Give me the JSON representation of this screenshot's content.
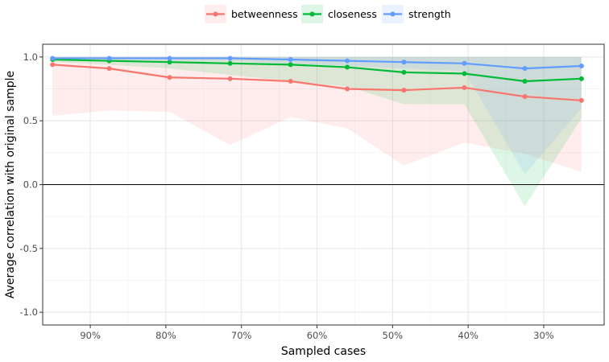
{
  "chart_data": {
    "type": "line",
    "title": "",
    "xlabel": "Sampled cases",
    "ylabel": "Average correlation with original sample",
    "xlim": [
      0.963,
      0.22
    ],
    "ylim": [
      -1.1,
      1.1
    ],
    "x_ticks": [
      {
        "value": 0.9,
        "label": "90%"
      },
      {
        "value": 0.8,
        "label": "80%"
      },
      {
        "value": 0.7,
        "label": "70%"
      },
      {
        "value": 0.6,
        "label": "60%"
      },
      {
        "value": 0.5,
        "label": "50%"
      },
      {
        "value": 0.4,
        "label": "40%"
      },
      {
        "value": 0.3,
        "label": "30%"
      }
    ],
    "y_ticks": [
      {
        "value": 1.0,
        "label": "1.0"
      },
      {
        "value": 0.5,
        "label": "0.5"
      },
      {
        "value": 0.0,
        "label": "0.0"
      },
      {
        "value": -0.5,
        "label": "-0.5"
      },
      {
        "value": -1.0,
        "label": "-1.0"
      }
    ],
    "grid": true,
    "reference_line": 0.0,
    "legend_position": "top",
    "x": [
      0.95,
      0.875,
      0.795,
      0.715,
      0.635,
      0.56,
      0.485,
      0.405,
      0.325,
      0.25
    ],
    "series": [
      {
        "name": "betweenness",
        "color": "#F8766D",
        "values": [
          0.94,
          0.91,
          0.84,
          0.83,
          0.81,
          0.75,
          0.74,
          0.76,
          0.69,
          0.66
        ],
        "lower": [
          0.54,
          0.58,
          0.57,
          0.31,
          0.53,
          0.44,
          0.15,
          0.33,
          0.24,
          0.1
        ],
        "upper": [
          1.0,
          1.0,
          1.0,
          1.0,
          1.0,
          1.0,
          1.0,
          1.0,
          1.0,
          1.0
        ]
      },
      {
        "name": "closeness",
        "color": "#00BA38",
        "values": [
          0.98,
          0.97,
          0.96,
          0.95,
          0.94,
          0.92,
          0.88,
          0.87,
          0.81,
          0.83
        ],
        "lower": [
          0.96,
          0.94,
          0.91,
          0.86,
          0.81,
          0.77,
          0.63,
          0.63,
          -0.17,
          0.52
        ],
        "upper": [
          1.0,
          1.0,
          1.0,
          1.0,
          1.0,
          1.0,
          1.0,
          1.0,
          1.0,
          1.0
        ]
      },
      {
        "name": "strength",
        "color": "#619CFF",
        "values": [
          0.99,
          0.99,
          0.99,
          0.99,
          0.98,
          0.97,
          0.96,
          0.95,
          0.91,
          0.93
        ],
        "lower": [
          0.98,
          0.98,
          0.97,
          0.97,
          0.95,
          0.93,
          0.91,
          0.89,
          0.08,
          0.6
        ],
        "upper": [
          1.0,
          1.0,
          1.0,
          1.0,
          1.0,
          1.0,
          1.0,
          1.0,
          1.0,
          1.0
        ]
      }
    ]
  }
}
